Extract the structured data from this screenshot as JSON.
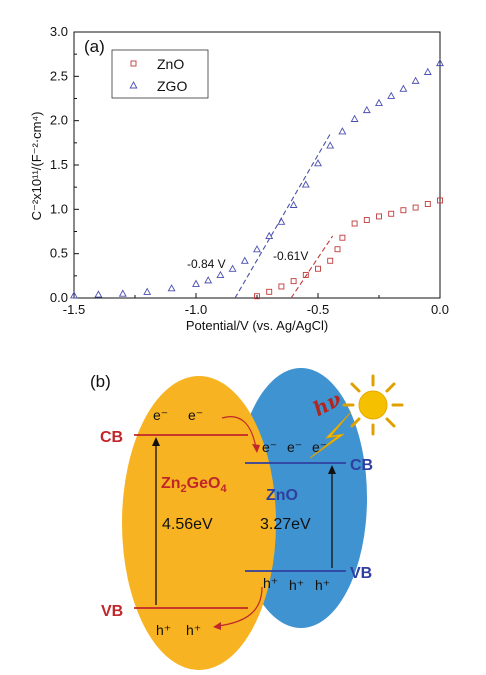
{
  "chart_data": {
    "type": "scatter",
    "panel_label": "(a)",
    "xlabel": "Potential/V (vs. Ag/AgCl)",
    "ylabel": "C⁻²x10¹¹/(F⁻²·cm⁴)",
    "xlim": [
      -1.5,
      0.0
    ],
    "ylim": [
      0.0,
      3.0
    ],
    "xticks": [
      "-1.5",
      "-1.0",
      "-0.5",
      "0.0"
    ],
    "yticks": [
      "0.0",
      "0.5",
      "1.0",
      "1.5",
      "2.0",
      "2.5",
      "3.0"
    ],
    "legend_position": "top-left",
    "series": [
      {
        "name": "ZnO",
        "marker": "square",
        "color": "#c03a3a",
        "x": [
          -0.75,
          -0.7,
          -0.65,
          -0.6,
          -0.55,
          -0.5,
          -0.45,
          -0.42,
          -0.4,
          -0.35,
          -0.3,
          -0.25,
          -0.2,
          -0.15,
          -0.1,
          -0.05,
          0.0
        ],
        "y": [
          0.02,
          0.07,
          0.13,
          0.19,
          0.26,
          0.33,
          0.42,
          0.55,
          0.68,
          0.84,
          0.88,
          0.92,
          0.95,
          0.99,
          1.02,
          1.06,
          1.1
        ]
      },
      {
        "name": "ZGO",
        "marker": "triangle",
        "color": "#4a4fb0",
        "x": [
          -1.5,
          -1.4,
          -1.3,
          -1.2,
          -1.1,
          -1.0,
          -0.95,
          -0.9,
          -0.85,
          -0.8,
          -0.75,
          -0.7,
          -0.65,
          -0.6,
          -0.55,
          -0.5,
          -0.45,
          -0.4,
          -0.35,
          -0.3,
          -0.25,
          -0.2,
          -0.15,
          -0.1,
          -0.05,
          0.0
        ],
        "y": [
          0.03,
          0.04,
          0.05,
          0.07,
          0.11,
          0.16,
          0.2,
          0.26,
          0.33,
          0.42,
          0.55,
          0.7,
          0.86,
          1.05,
          1.28,
          1.52,
          1.72,
          1.88,
          2.02,
          2.12,
          2.2,
          2.28,
          2.36,
          2.45,
          2.55,
          2.65
        ]
      }
    ],
    "fit_lines": [
      {
        "series": "ZnO",
        "x": [
          -0.61,
          -0.44
        ],
        "y": [
          0.0,
          0.7
        ],
        "color": "#c03a3a"
      },
      {
        "series": "ZGO",
        "x": [
          -0.84,
          -0.45
        ],
        "y": [
          0.0,
          1.85
        ],
        "color": "#4a4fb0"
      }
    ],
    "annotations": [
      {
        "text": "-0.84 V",
        "x": -0.84
      },
      {
        "text": "-0.61V",
        "x": -0.61
      }
    ]
  },
  "diagram": {
    "panel_label": "(b)",
    "zgo": {
      "name_main": "Zn",
      "name_sub1": "2",
      "name_mid": "GeO",
      "name_sub2": "4",
      "gap": "4.56eV",
      "cb_label": "CB",
      "vb_label": "VB",
      "electrons": [
        "e⁻",
        "e⁻"
      ],
      "holes": [
        "h⁺",
        "h⁺"
      ],
      "color": "#f7b321"
    },
    "zno": {
      "name": "ZnO",
      "gap": "3.27eV",
      "cb_label": "CB",
      "vb_label": "VB",
      "electrons": [
        "e⁻",
        "e⁻",
        "e⁻"
      ],
      "holes": [
        "h⁺",
        "h⁺",
        "h⁺"
      ],
      "color": "#3f93d0"
    },
    "light_label": "hν",
    "colors": {
      "zgo_text": "#c0262a",
      "zno_text": "#2f3f9f",
      "sun": "#f5c000"
    }
  }
}
